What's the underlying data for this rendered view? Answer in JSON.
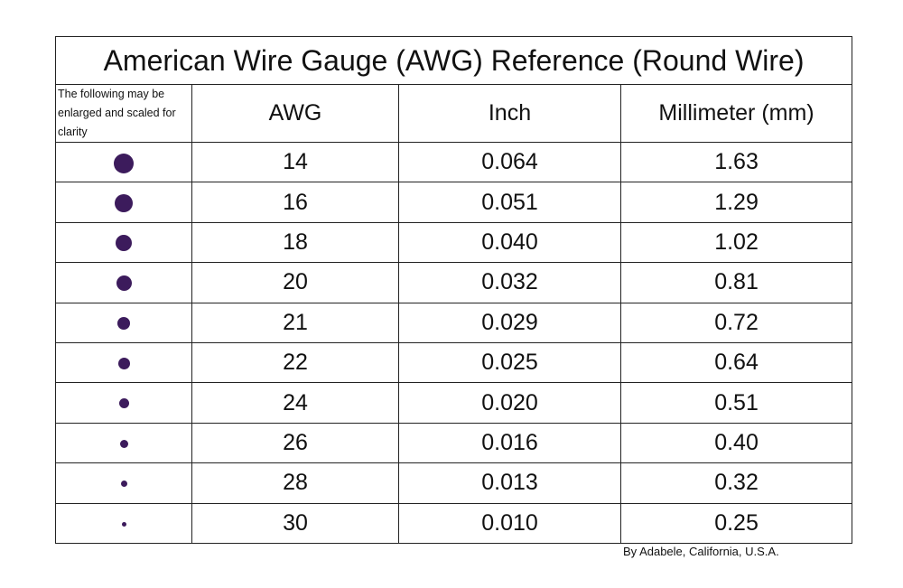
{
  "title": "American Wire Gauge (AWG) Reference (Round Wire)",
  "header": {
    "note": "The following may be enlarged and scaled for clarity",
    "awg": "AWG",
    "inch": "Inch",
    "mm": "Millimeter (mm)"
  },
  "rows": [
    [
      "14",
      "0.064",
      "1.63"
    ],
    [
      "16",
      "0.051",
      "1.29"
    ],
    [
      "18",
      "0.040",
      "1.02"
    ],
    [
      "20",
      "0.032",
      "0.81"
    ],
    [
      "21",
      "0.029",
      "0.72"
    ],
    [
      "22",
      "0.025",
      "0.64"
    ],
    [
      "24",
      "0.020",
      "0.51"
    ],
    [
      "26",
      "0.016",
      "0.40"
    ],
    [
      "28",
      "0.013",
      "0.32"
    ],
    [
      "30",
      "0.010",
      "0.25"
    ]
  ],
  "footer": "By Adabele, California, U.S.A."
}
